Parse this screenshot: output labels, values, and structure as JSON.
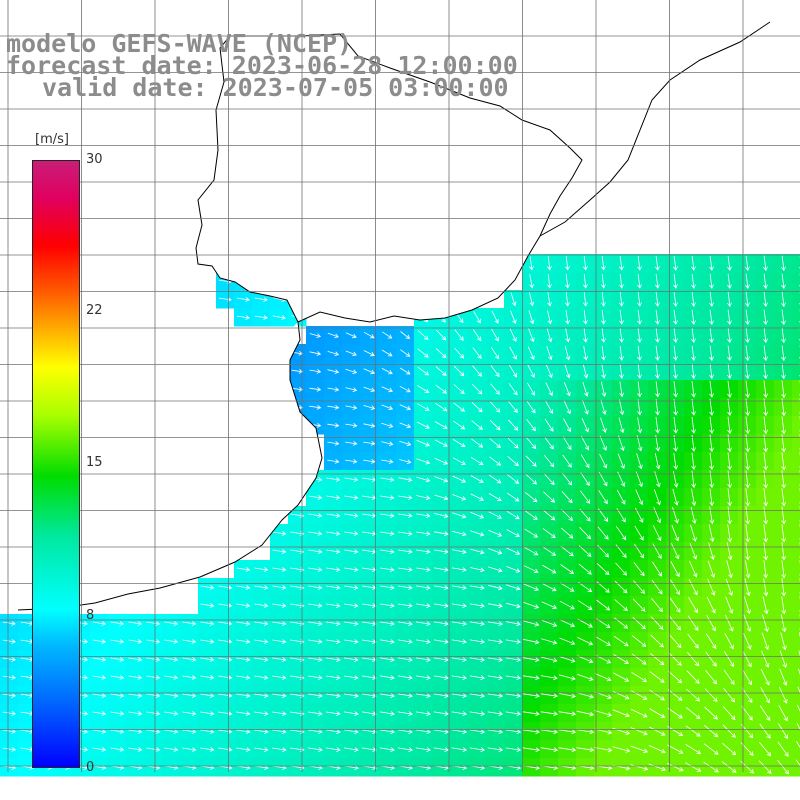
{
  "title": {
    "line1": "modelo GEFS-WAVE (NCEP)",
    "line2": "forecast date: 2023-06-28 12:00:00",
    "line3": "valid date: 2023-07-05 03:00:00"
  },
  "colorbar": {
    "unit": "[m/s]",
    "ticks": [
      {
        "label": "30",
        "value": 30
      },
      {
        "label": "22",
        "value": 22
      },
      {
        "label": "15",
        "value": 15
      },
      {
        "label": "8",
        "value": 8
      },
      {
        "label": "0",
        "value": 0
      }
    ],
    "range": [
      0,
      30
    ]
  },
  "colors": {
    "land": "#ffffff",
    "coastline": "#000000",
    "grid": "#707070",
    "arrows": "#ffffff"
  }
}
